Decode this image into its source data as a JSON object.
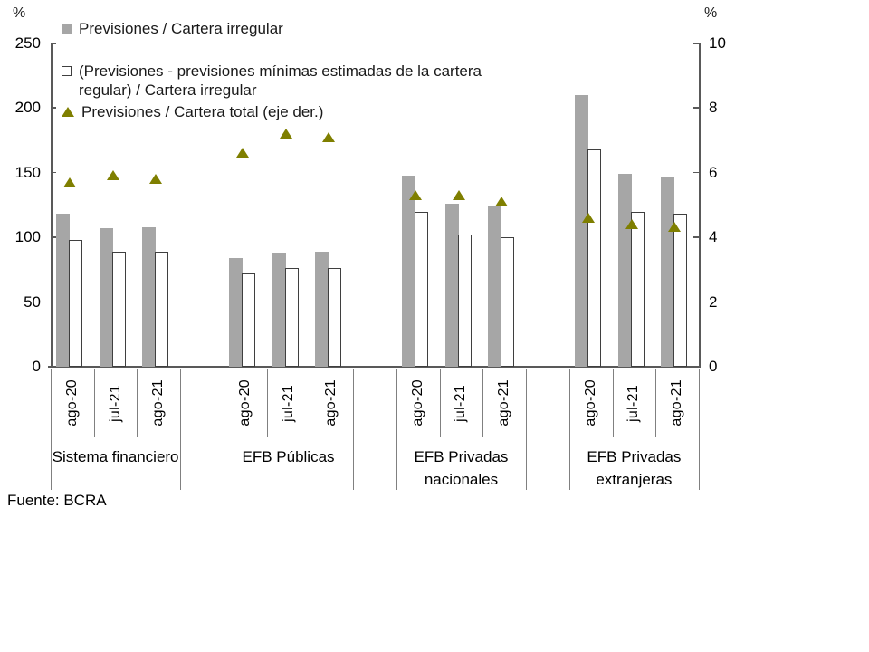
{
  "colors": {
    "bar_fill": "#a6a6a6",
    "bar_border": "#3f3f3f",
    "marker": "#7f7f00",
    "axis_line": "#595959",
    "separator": "#808080"
  },
  "legend": {
    "items": [
      {
        "icon": "gray-filled-square",
        "label": "Previsiones / Cartera irregular"
      },
      {
        "icon": "white-outlined-square",
        "label": "(Previsiones - previsiones mínimas estimadas de la cartera regular) / Cartera irregular"
      },
      {
        "icon": "olive-triangle",
        "label": "Previsiones / Cartera total (eje der.)"
      }
    ]
  },
  "footer": {
    "source": "Fuente: BCRA"
  },
  "chart_data": {
    "type": "bar",
    "title": "",
    "legend_position": "top-left",
    "grid": false,
    "left_axis": {
      "label": "%",
      "range": [
        0,
        250
      ],
      "tick_step": 50,
      "ticks": [
        0,
        50,
        100,
        150,
        200,
        250
      ]
    },
    "right_axis": {
      "label": "%",
      "range": [
        0,
        10
      ],
      "tick_step": 2,
      "ticks": [
        0,
        2,
        4,
        6,
        8,
        10
      ]
    },
    "groups": [
      "Sistema financiero",
      "EFB Públicas",
      "EFB Privadas nacionales",
      "EFB Privadas extranjeras"
    ],
    "categories_periods": [
      "ago-20",
      "jul-21",
      "ago-21"
    ],
    "series": [
      {
        "name": "Previsiones / Cartera irregular",
        "type": "bar",
        "style": "filled-gray",
        "axis": "left",
        "values": [
          [
            118,
            107,
            108
          ],
          [
            84,
            88,
            89
          ],
          [
            148,
            126,
            125
          ],
          [
            210,
            149,
            147
          ]
        ]
      },
      {
        "name": "(Previsiones - previsiones mínimas estimadas de la cartera regular) / Cartera irregular",
        "type": "bar",
        "style": "outlined-white",
        "axis": "left",
        "values": [
          [
            98,
            89,
            89
          ],
          [
            72,
            76,
            76
          ],
          [
            120,
            102,
            100
          ],
          [
            168,
            120,
            118
          ]
        ]
      },
      {
        "name": "Previsiones / Cartera total (eje der.)",
        "type": "triangle-marker",
        "axis": "right",
        "values": [
          [
            5.7,
            5.9,
            5.8
          ],
          [
            6.6,
            7.2,
            7.1
          ],
          [
            5.3,
            5.3,
            5.1
          ],
          [
            4.6,
            4.4,
            4.3
          ]
        ]
      }
    ],
    "source": "Fuente: BCRA"
  }
}
